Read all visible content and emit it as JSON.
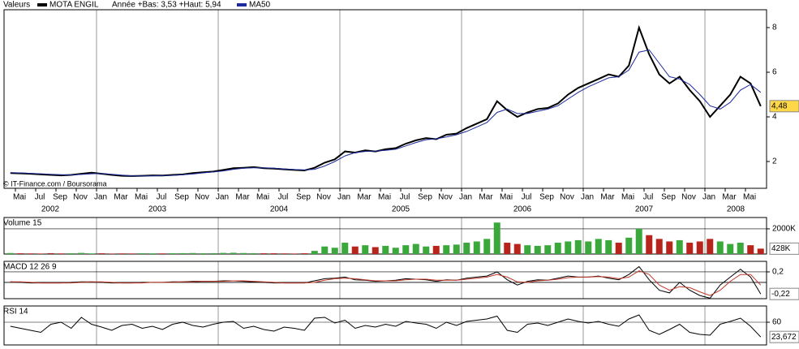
{
  "header": {
    "section": "Valeurs",
    "stats": "Année +Bas: 3,53 +Haut: 5,94",
    "copyright": "© IT-Finance.com / Boursorama"
  },
  "chart_data": [
    {
      "type": "line",
      "title": "MOTA ENGIL",
      "x": [
        "2002-04",
        "2002-05",
        "2002-06",
        "2002-07",
        "2002-08",
        "2002-09",
        "2002-10",
        "2002-11",
        "2002-12",
        "2003-01",
        "2003-02",
        "2003-03",
        "2003-04",
        "2003-05",
        "2003-06",
        "2003-07",
        "2003-08",
        "2003-09",
        "2003-10",
        "2003-11",
        "2003-12",
        "2004-01",
        "2004-02",
        "2004-03",
        "2004-04",
        "2004-05",
        "2004-06",
        "2004-07",
        "2004-08",
        "2004-09",
        "2004-10",
        "2004-11",
        "2004-12",
        "2005-01",
        "2005-02",
        "2005-03",
        "2005-04",
        "2005-05",
        "2005-06",
        "2005-07",
        "2005-08",
        "2005-09",
        "2005-10",
        "2005-11",
        "2005-12",
        "2006-01",
        "2006-02",
        "2006-03",
        "2006-04",
        "2006-05",
        "2006-06",
        "2006-07",
        "2006-08",
        "2006-09",
        "2006-10",
        "2006-11",
        "2006-12",
        "2007-01",
        "2007-02",
        "2007-03",
        "2007-04",
        "2007-05",
        "2007-06",
        "2007-07",
        "2007-08",
        "2007-09",
        "2007-10",
        "2007-11",
        "2007-12",
        "2008-01",
        "2008-02",
        "2008-03",
        "2008-04",
        "2008-05",
        "2008-06"
      ],
      "series": [
        {
          "name": "MOTA ENGIL",
          "color": "#000000",
          "values": [
            1.48,
            1.47,
            1.45,
            1.42,
            1.4,
            1.38,
            1.4,
            1.45,
            1.5,
            1.45,
            1.4,
            1.36,
            1.35,
            1.36,
            1.38,
            1.37,
            1.4,
            1.42,
            1.48,
            1.52,
            1.55,
            1.62,
            1.7,
            1.72,
            1.75,
            1.7,
            1.68,
            1.65,
            1.62,
            1.6,
            1.72,
            1.95,
            2.1,
            2.45,
            2.4,
            2.5,
            2.45,
            2.55,
            2.6,
            2.8,
            2.95,
            3.05,
            3.0,
            3.2,
            3.25,
            3.5,
            3.7,
            3.9,
            4.7,
            4.3,
            4.0,
            4.2,
            4.35,
            4.4,
            4.6,
            5.0,
            5.3,
            5.5,
            5.7,
            5.9,
            5.8,
            6.3,
            8.0,
            6.8,
            5.9,
            5.5,
            5.8,
            5.2,
            4.7,
            4.0,
            4.5,
            5.0,
            5.8,
            5.5,
            4.48
          ]
        },
        {
          "name": "MA50",
          "color": "#1c2a9c",
          "values": [
            1.5,
            1.49,
            1.47,
            1.45,
            1.43,
            1.41,
            1.4,
            1.42,
            1.45,
            1.46,
            1.43,
            1.39,
            1.36,
            1.35,
            1.36,
            1.37,
            1.38,
            1.41,
            1.44,
            1.49,
            1.53,
            1.58,
            1.65,
            1.7,
            1.72,
            1.72,
            1.7,
            1.67,
            1.64,
            1.62,
            1.65,
            1.8,
            2.0,
            2.25,
            2.4,
            2.45,
            2.47,
            2.5,
            2.55,
            2.7,
            2.85,
            2.98,
            3.02,
            3.1,
            3.2,
            3.35,
            3.55,
            3.75,
            4.2,
            4.35,
            4.15,
            4.15,
            4.25,
            4.35,
            4.5,
            4.8,
            5.1,
            5.35,
            5.55,
            5.75,
            5.8,
            6.1,
            6.9,
            7.0,
            6.4,
            5.8,
            5.7,
            5.45,
            5.0,
            4.5,
            4.35,
            4.65,
            5.2,
            5.45,
            5.1
          ]
        }
      ],
      "ylim": [
        0.8,
        8.8
      ],
      "yticks": [
        2,
        4,
        6,
        8
      ],
      "last": {
        "value": 4.48,
        "label": "4,48"
      },
      "xticks": [
        {
          "value": "2002-05",
          "label": "Mai"
        },
        {
          "value": "2002-07",
          "label": "Jul"
        },
        {
          "value": "2002-09",
          "label": "Sep"
        },
        {
          "value": "2002-11",
          "label": "Nov"
        },
        {
          "value": "2003-01",
          "label": "Jan"
        },
        {
          "value": "2003-03",
          "label": "Mar"
        },
        {
          "value": "2003-05",
          "label": "Mai"
        },
        {
          "value": "2003-07",
          "label": "Jul"
        },
        {
          "value": "2003-09",
          "label": "Sep"
        },
        {
          "value": "2003-11",
          "label": "Nov"
        },
        {
          "value": "2004-01",
          "label": "Jan"
        },
        {
          "value": "2004-03",
          "label": "Mar"
        },
        {
          "value": "2004-05",
          "label": "Mai"
        },
        {
          "value": "2004-07",
          "label": "Jul"
        },
        {
          "value": "2004-09",
          "label": "Sep"
        },
        {
          "value": "2004-11",
          "label": "Nov"
        },
        {
          "value": "2005-01",
          "label": "Jan"
        },
        {
          "value": "2005-03",
          "label": "Mar"
        },
        {
          "value": "2005-05",
          "label": "Mai"
        },
        {
          "value": "2005-07",
          "label": "Jul"
        },
        {
          "value": "2005-09",
          "label": "Sep"
        },
        {
          "value": "2005-11",
          "label": "Nov"
        },
        {
          "value": "2006-01",
          "label": "Jan"
        },
        {
          "value": "2006-03",
          "label": "Mar"
        },
        {
          "value": "2006-05",
          "label": "Mai"
        },
        {
          "value": "2006-07",
          "label": "Jul"
        },
        {
          "value": "2006-09",
          "label": "Sep"
        },
        {
          "value": "2006-11",
          "label": "Nov"
        },
        {
          "value": "2007-01",
          "label": "Jan"
        },
        {
          "value": "2007-03",
          "label": "Mar"
        },
        {
          "value": "2007-05",
          "label": "Mai"
        },
        {
          "value": "2007-07",
          "label": "Jul"
        },
        {
          "value": "2007-09",
          "label": "Sep"
        },
        {
          "value": "2007-11",
          "label": "Nov"
        },
        {
          "value": "2008-01",
          "label": "Jan"
        },
        {
          "value": "2008-03",
          "label": "Mar"
        },
        {
          "value": "2008-05",
          "label": "Mai"
        }
      ],
      "years": [
        2002,
        2003,
        2004,
        2005,
        2006,
        2007,
        2008
      ],
      "grid": true
    },
    {
      "type": "bar",
      "title": "Volume 15",
      "up_color": "#3aa83a",
      "down_color": "#b8231c",
      "values": [
        80000,
        60000,
        50000,
        40000,
        70000,
        50000,
        60000,
        90000,
        50000,
        60000,
        40000,
        50000,
        45000,
        60000,
        55000,
        50000,
        60000,
        70000,
        80000,
        60000,
        70000,
        90000,
        100000,
        80000,
        70000,
        60000,
        60000,
        50000,
        40000,
        60000,
        250000,
        600000,
        500000,
        900000,
        600000,
        700000,
        550000,
        650000,
        500000,
        700000,
        800000,
        600000,
        650000,
        700000,
        750000,
        900000,
        1000000,
        1200000,
        2500000,
        900000,
        800000,
        700000,
        650000,
        700000,
        900000,
        1000000,
        1100000,
        1000000,
        1200000,
        1100000,
        900000,
        1300000,
        2000000,
        1500000,
        1200000,
        1000000,
        1100000,
        900000,
        1000000,
        1200000,
        1000000,
        800000,
        900000,
        700000,
        428000
      ],
      "ylim": [
        0,
        2900000
      ],
      "yticks": [
        {
          "value": 2000000,
          "label": "2000K"
        }
      ],
      "last": {
        "value": 428000,
        "label": "428K"
      }
    },
    {
      "type": "line",
      "title": "MACD 12 26 9",
      "series": [
        {
          "color": "#000000",
          "values": [
            0.01,
            0,
            -0.01,
            -0.01,
            -0.01,
            -0.01,
            0,
            0.01,
            0.01,
            0,
            -0.01,
            -0.01,
            -0.01,
            0,
            0,
            0,
            0.01,
            0.01,
            0.02,
            0.02,
            0.02,
            0.03,
            0.03,
            0.02,
            0.01,
            0,
            -0.01,
            -0.01,
            -0.01,
            -0.01,
            0.03,
            0.07,
            0.08,
            0.1,
            0.05,
            0.04,
            0.02,
            0.03,
            0.04,
            0.07,
            0.06,
            0.05,
            0.02,
            0.05,
            0.04,
            0.08,
            0.1,
            0.12,
            0.2,
            0.05,
            -0.05,
            0.02,
            0.05,
            0.04,
            0.08,
            0.12,
            0.1,
            0.1,
            0.12,
            0.08,
            0.05,
            0.15,
            0.3,
            0.05,
            -0.15,
            -0.2,
            0,
            -0.15,
            -0.25,
            -0.3,
            -0.05,
            0.1,
            0.25,
            0.1,
            -0.22
          ]
        },
        {
          "color": "#c0392b",
          "values": [
            0.01,
            0.01,
            0,
            -0.01,
            -0.01,
            -0.01,
            -0.01,
            0,
            0.01,
            0.01,
            0,
            -0.01,
            -0.01,
            -0.01,
            0,
            0,
            0,
            0.01,
            0.01,
            0.02,
            0.02,
            0.02,
            0.03,
            0.03,
            0.02,
            0.01,
            0,
            -0.01,
            -0.01,
            -0.01,
            0,
            0.04,
            0.07,
            0.08,
            0.07,
            0.05,
            0.03,
            0.03,
            0.03,
            0.05,
            0.06,
            0.06,
            0.04,
            0.04,
            0.04,
            0.06,
            0.08,
            0.1,
            0.15,
            0.1,
            0.01,
            0,
            0.03,
            0.04,
            0.06,
            0.09,
            0.1,
            0.1,
            0.11,
            0.1,
            0.07,
            0.1,
            0.22,
            0.15,
            -0.05,
            -0.15,
            -0.08,
            -0.1,
            -0.18,
            -0.25,
            -0.15,
            0.02,
            0.15,
            0.15,
            -0.05
          ]
        }
      ],
      "ylim": [
        -0.31,
        0.4
      ],
      "yticks": [
        {
          "value": 0.2,
          "label": "0,2"
        }
      ],
      "last": {
        "value": -0.22,
        "label": "-0,22"
      }
    },
    {
      "type": "line",
      "title": "RSI 14",
      "series": [
        {
          "color": "#000000",
          "values": [
            50,
            45,
            40,
            35,
            55,
            60,
            45,
            72,
            55,
            48,
            40,
            52,
            55,
            45,
            50,
            42,
            55,
            60,
            52,
            48,
            55,
            60,
            62,
            45,
            50,
            42,
            38,
            48,
            45,
            40,
            70,
            72,
            58,
            65,
            45,
            52,
            48,
            55,
            50,
            62,
            58,
            55,
            45,
            60,
            52,
            62,
            65,
            68,
            75,
            40,
            35,
            55,
            58,
            52,
            60,
            68,
            62,
            58,
            62,
            55,
            50,
            68,
            78,
            40,
            30,
            42,
            55,
            35,
            30,
            28,
            55,
            62,
            70,
            50,
            23.672
          ]
        }
      ],
      "ylim": [
        4,
        100
      ],
      "yticks": [
        60
      ],
      "last": {
        "value": 23.672,
        "label": "23,672"
      }
    }
  ]
}
